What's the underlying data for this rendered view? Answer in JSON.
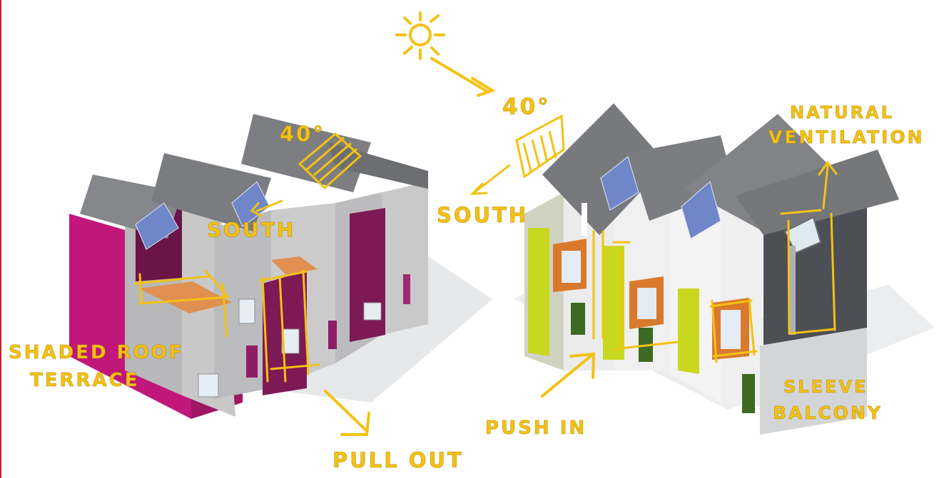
{
  "annotations": {
    "angle_left": "40°",
    "angle_right": "40°",
    "south_left": "SOUTH",
    "south_right": "SOUTH",
    "natural_line1": "NATURAL",
    "natural_line2": "VENTILATION",
    "shaded_line1": "SHADED ROOF",
    "shaded_line2": "TERRACE",
    "pull_out": "PULL OUT",
    "push_in": "PUSH IN",
    "sleeve_line1": "SLEEVE",
    "sleeve_line2": "BALCONY"
  },
  "colors": {
    "annotation": "#f3c212",
    "magenta": "#c2177a",
    "plum": "#7d1955",
    "lime": "#c7d81f",
    "timber": "#d9792c",
    "roof": "#7b7c80",
    "wall_grey": "#bdbdbe",
    "dark_cladding": "#4c4f55"
  }
}
